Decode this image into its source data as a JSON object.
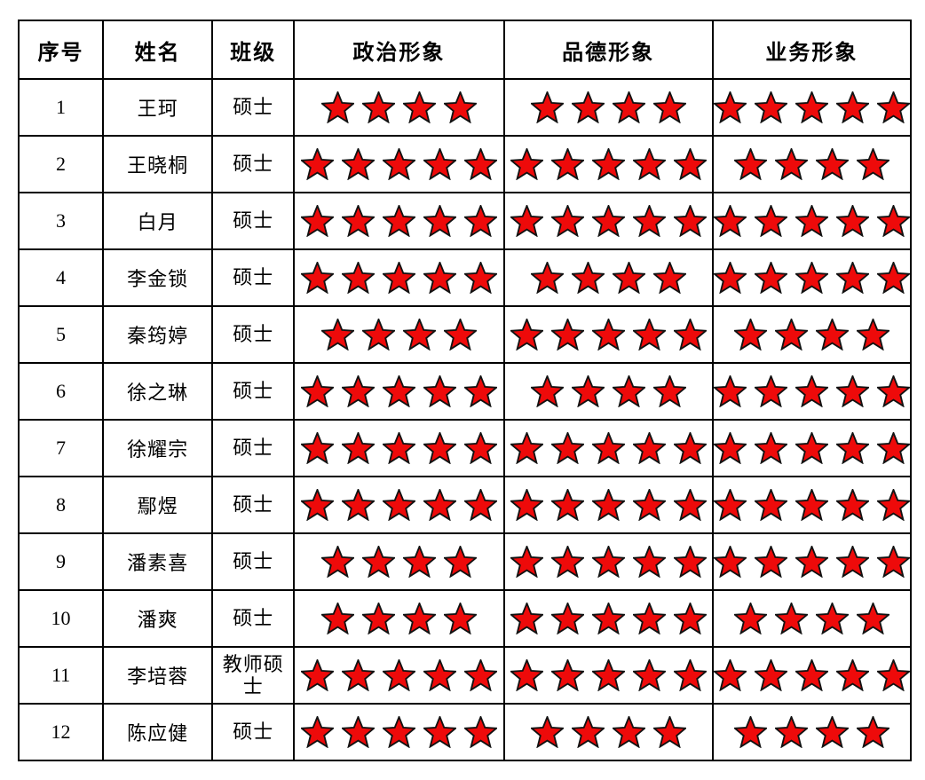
{
  "table": {
    "headers": [
      "序号",
      "姓名",
      "班级",
      "政治形象",
      "品德形象",
      "业务形象"
    ],
    "rows": [
      {
        "no": "1",
        "name": "王珂",
        "class": "硕士",
        "political": 4,
        "moral": 4,
        "professional": 5
      },
      {
        "no": "2",
        "name": "王晓桐",
        "class": "硕士",
        "political": 5,
        "moral": 5,
        "professional": 4
      },
      {
        "no": "3",
        "name": "白月",
        "class": "硕士",
        "political": 5,
        "moral": 5,
        "professional": 5
      },
      {
        "no": "4",
        "name": "李金锁",
        "class": "硕士",
        "political": 5,
        "moral": 4,
        "professional": 5
      },
      {
        "no": "5",
        "name": "秦筠婷",
        "class": "硕士",
        "political": 4,
        "moral": 5,
        "professional": 4
      },
      {
        "no": "6",
        "name": "徐之琳",
        "class": "硕士",
        "political": 5,
        "moral": 4,
        "professional": 5
      },
      {
        "no": "7",
        "name": "徐耀宗",
        "class": "硕士",
        "political": 5,
        "moral": 5,
        "professional": 5
      },
      {
        "no": "8",
        "name": "鄢煜",
        "class": "硕士",
        "political": 5,
        "moral": 5,
        "professional": 5
      },
      {
        "no": "9",
        "name": "潘素喜",
        "class": "硕士",
        "political": 4,
        "moral": 5,
        "professional": 5
      },
      {
        "no": "10",
        "name": "潘爽",
        "class": "硕士",
        "political": 4,
        "moral": 5,
        "professional": 4
      },
      {
        "no": "11",
        "name": "李培蓉",
        "class": "教师硕士",
        "political": 5,
        "moral": 5,
        "professional": 5
      },
      {
        "no": "12",
        "name": "陈应健",
        "class": "硕士",
        "political": 5,
        "moral": 4,
        "professional": 4
      }
    ],
    "max_stars": 5
  },
  "colors": {
    "star_fill": "#ee0a0a",
    "star_stroke": "#121212",
    "border": "#000000",
    "text": "#000000",
    "background": "#ffffff"
  },
  "icons": {
    "star": "star-icon"
  }
}
